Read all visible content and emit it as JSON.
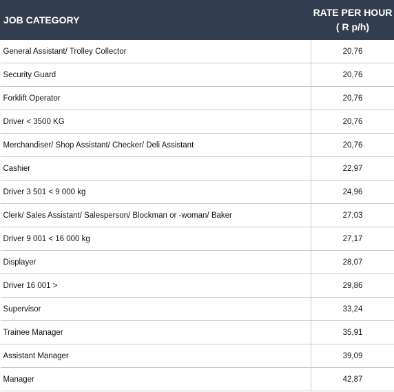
{
  "table": {
    "header": {
      "category": "JOB CATEGORY",
      "rate": [
        "RATE PER HOUR",
        "( R p/h)"
      ]
    },
    "rows": [
      [
        "General Assistant/ Trolley Collector",
        "20,76"
      ],
      [
        "Security Guard",
        "20,76"
      ],
      [
        "Forklift Operator",
        "20,76"
      ],
      [
        "Driver < 3500 KG",
        "20,76"
      ],
      [
        "Merchandiser/ Shop Assistant/ Checker/ Deli Assistant",
        "20,76"
      ],
      [
        "Cashier",
        "22,97"
      ],
      [
        "Driver 3 501 < 9 000 kg",
        "24,96"
      ],
      [
        "Clerk/ Sales Assistant/ Salesperson/ Blockman or -woman/ Baker",
        "27,03"
      ],
      [
        "Driver 9 001 < 16 000 kg",
        "27,17"
      ],
      [
        "Displayer",
        "28,07"
      ],
      [
        "Driver 16 001 >",
        "29,86"
      ],
      [
        "Supervisor",
        "33,24"
      ],
      [
        "Trainee Manager",
        "35,91"
      ],
      [
        "Assistant Manager",
        "39,09"
      ],
      [
        "Manager",
        "42,87"
      ]
    ]
  }
}
